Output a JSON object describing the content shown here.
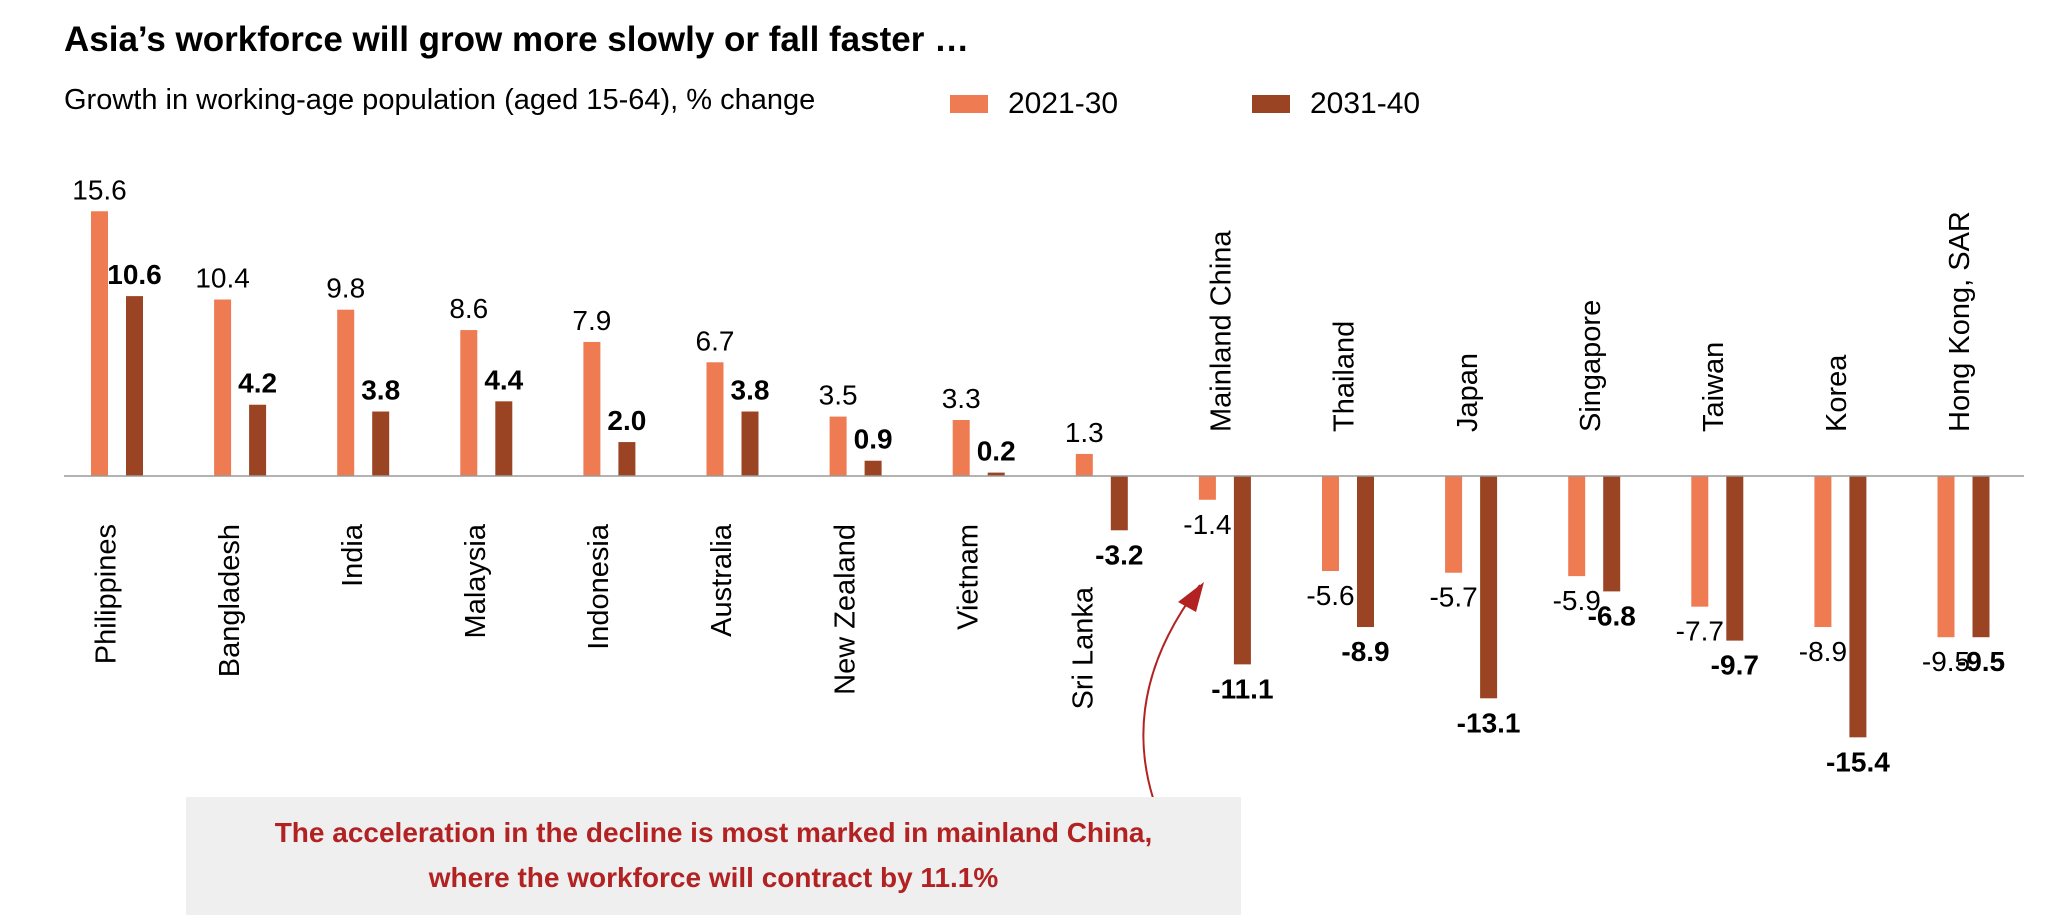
{
  "title": "Asia’s workforce will grow more slowly or fall faster …",
  "subtitle": "Growth in working-age population (aged 15-64), % change",
  "colors": {
    "series_2021_30": "#ef7b52",
    "series_2031_40": "#9b4424",
    "callout": "#b22222"
  },
  "callout": {
    "line1": "The acceleration in the decline is most marked in mainland China,",
    "line2": "where the workforce will contract by 11.1%"
  },
  "chart_data": {
    "type": "bar",
    "title": "Asia’s workforce will grow more slowly or fall faster …",
    "subtitle": "Growth in working-age population (aged 15-64), % change",
    "categories": [
      "Philippines",
      "Bangladesh",
      "India",
      "Malaysia",
      "Indonesia",
      "Australia",
      "New Zealand",
      "Vietnam",
      "Sri Lanka",
      "Mainland China",
      "Thailand",
      "Japan",
      "Singapore",
      "Taiwan",
      "Korea",
      "Hong Kong, SAR"
    ],
    "series": [
      {
        "name": "2021-30",
        "values": [
          15.6,
          10.4,
          9.8,
          8.6,
          7.9,
          6.7,
          3.5,
          3.3,
          1.3,
          -1.4,
          -5.6,
          -5.7,
          -5.9,
          -7.7,
          -8.9,
          -9.5
        ]
      },
      {
        "name": "2031-40",
        "values": [
          10.6,
          4.2,
          3.8,
          4.4,
          2.0,
          3.8,
          0.9,
          0.2,
          -3.2,
          -11.1,
          -8.9,
          -13.1,
          -6.8,
          -9.7,
          -15.4,
          -9.5
        ]
      }
    ],
    "ylim": [
      -16.5,
      17.5
    ],
    "grid": false,
    "legend": "top"
  }
}
